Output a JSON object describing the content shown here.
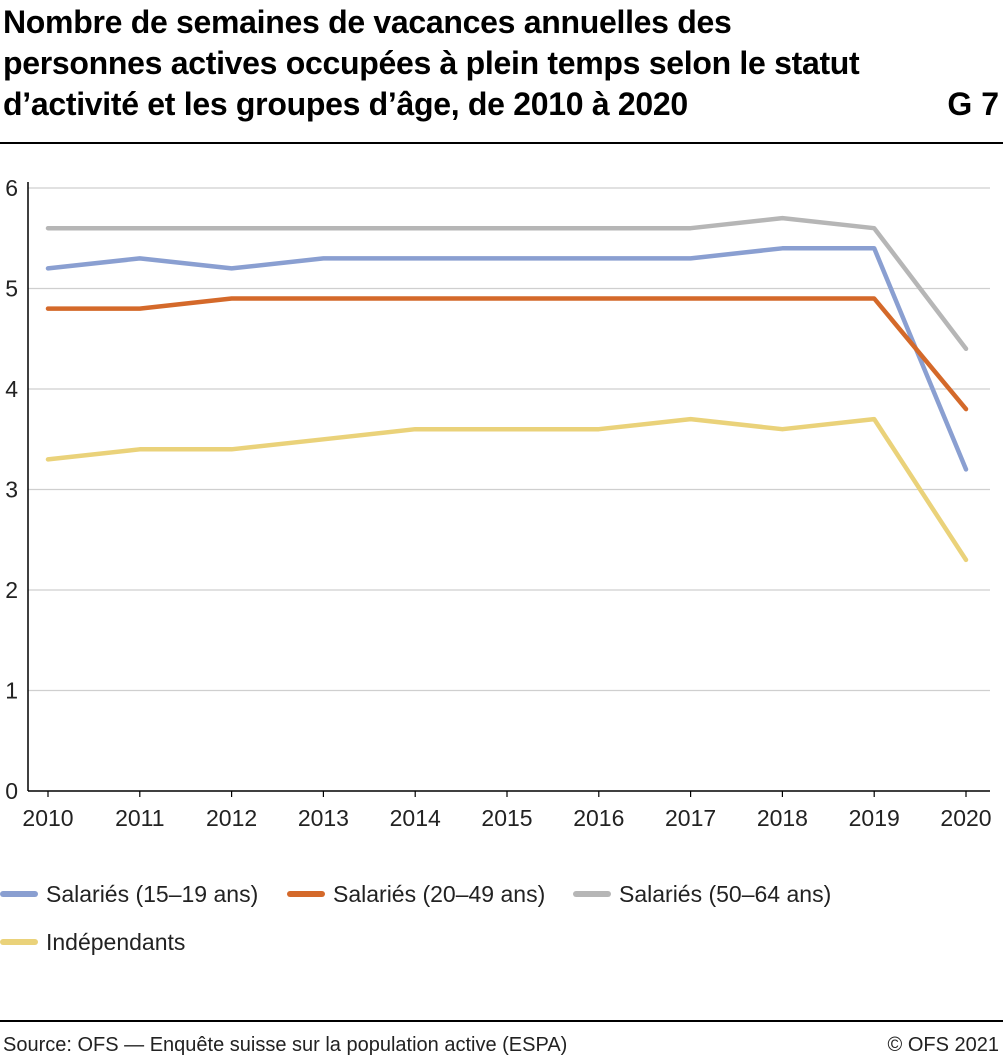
{
  "header": {
    "title": "Nombre de semaines de vacances annuelles des personnes actives occupées à plein temps selon le statut d’activité et les groupes d’âge, de 2010 à 2020",
    "figure_id": "G 7"
  },
  "footer": {
    "source": "Source: OFS — Enquête suisse sur la population active (ESPA)",
    "copyright": "© OFS 2021"
  },
  "chart_data": {
    "type": "line",
    "title": "Nombre de semaines de vacances annuelles des personnes actives occupées à plein temps selon le statut d’activité et les groupes d’âge, de 2010 à 2020",
    "x": [
      "2010",
      "2011",
      "2012",
      "2013",
      "2014",
      "2015",
      "2016",
      "2017",
      "2018",
      "2019",
      "2020"
    ],
    "y_ticks": [
      "0",
      "1",
      "2",
      "3",
      "4",
      "5",
      "6"
    ],
    "ylim": [
      0,
      6
    ],
    "grid": true,
    "legend_position": "bottom",
    "series": [
      {
        "name": "Salariés (15–19 ans)",
        "color": "#8a9fd1",
        "values": [
          5.2,
          5.3,
          5.2,
          5.3,
          5.3,
          5.3,
          5.3,
          5.3,
          5.4,
          5.4,
          3.2
        ]
      },
      {
        "name": "Salariés (20–49 ans)",
        "color": "#d4692a",
        "values": [
          4.8,
          4.8,
          4.9,
          4.9,
          4.9,
          4.9,
          4.9,
          4.9,
          4.9,
          4.9,
          3.8
        ]
      },
      {
        "name": "Salariés (50–64 ans)",
        "color": "#b6b6b6",
        "values": [
          5.6,
          5.6,
          5.6,
          5.6,
          5.6,
          5.6,
          5.6,
          5.6,
          5.7,
          5.6,
          4.4
        ]
      },
      {
        "name": "Indépendants",
        "color": "#ead27a",
        "values": [
          3.3,
          3.4,
          3.4,
          3.5,
          3.6,
          3.6,
          3.6,
          3.7,
          3.6,
          3.7,
          2.3
        ]
      }
    ]
  }
}
